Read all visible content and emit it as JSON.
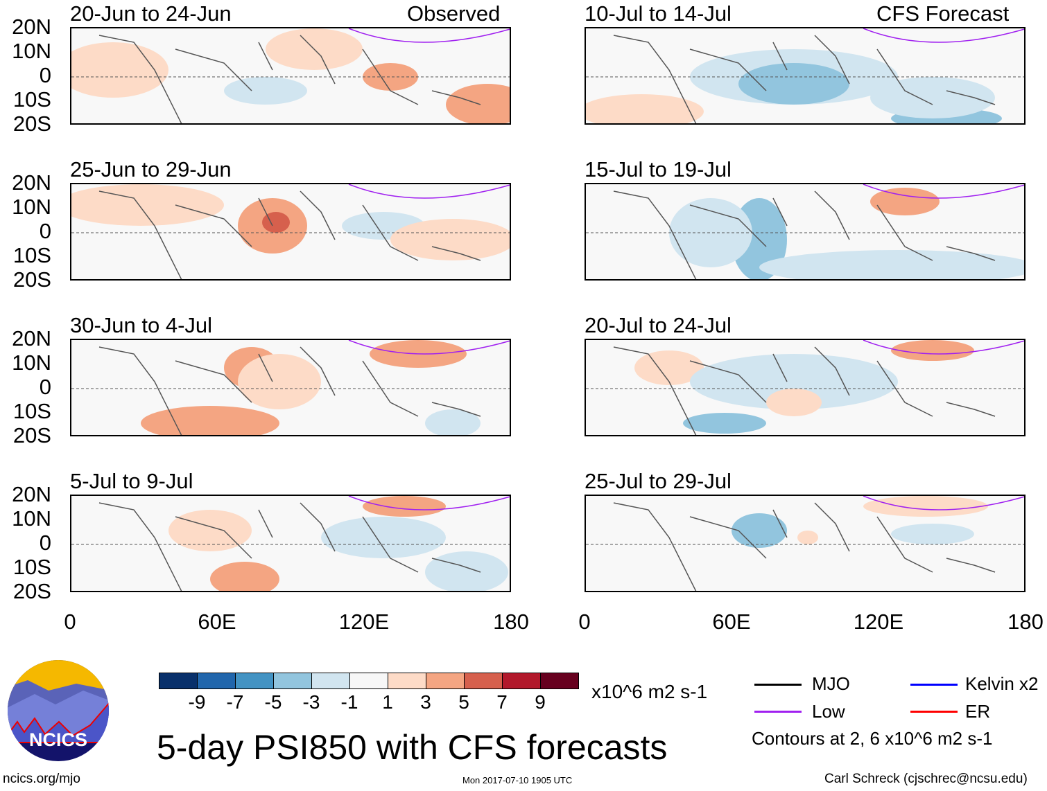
{
  "left_header": "Observed",
  "right_header": "CFS Forecast",
  "panels_left": [
    "20-Jun to 24-Jun",
    "25-Jun to 29-Jun",
    "30-Jun to 4-Jul",
    "5-Jul to 9-Jul"
  ],
  "panels_right": [
    "10-Jul to 14-Jul",
    "15-Jul to 19-Jul",
    "20-Jul to 24-Jul",
    "25-Jul to 29-Jul"
  ],
  "y_ticks": [
    "20N",
    "10N",
    "0",
    "10S",
    "20S"
  ],
  "x_ticks": [
    "0",
    "60E",
    "120E",
    "180"
  ],
  "colorbar": {
    "colors": [
      "#08306b",
      "#2166ac",
      "#4393c3",
      "#92c5de",
      "#d1e5f0",
      "#f7f7f7",
      "#fddbc7",
      "#f4a582",
      "#d6604d",
      "#b2182b",
      "#67001f"
    ],
    "labels": [
      "-9",
      "-7",
      "-5",
      "-3",
      "-1",
      "1",
      "3",
      "5",
      "7",
      "9"
    ],
    "units": "x10^6 m2 s-1"
  },
  "legend": {
    "items": [
      {
        "label": "MJO",
        "color": "#000000"
      },
      {
        "label": "Kelvin x2",
        "color": "#0000ff"
      },
      {
        "label": "Low",
        "color": "#a020f0"
      },
      {
        "label": "ER",
        "color": "#ff0000"
      }
    ],
    "note": "Contours at 2, 6 x10^6 m2 s-1"
  },
  "title": "5-day PSI850 with CFS forecasts",
  "logo_text": "NCICS",
  "footer": {
    "url": "ncics.org/mjo",
    "timestamp": "Mon 2017-07-10 1905 UTC",
    "author": "Carl Schreck (cjschrec@ncsu.edu)"
  }
}
